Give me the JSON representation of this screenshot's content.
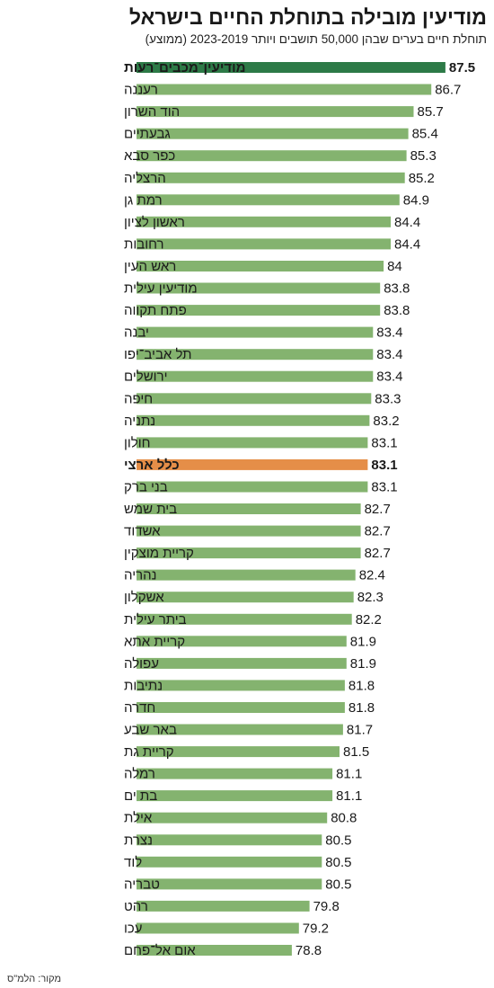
{
  "header": {
    "title": "מודיעין מובילה בתוחלת החיים בישראל",
    "subtitle": "תוחלת חיים בערים שבהן 50,000 תושבים ויותר 2023-2019 (ממוצע)"
  },
  "footer": {
    "source": "מקור: הלמ\"ס"
  },
  "colors": {
    "default_bar": "#84b36f",
    "highlight_city": "#2d7a47",
    "national_average": "#e58e48"
  },
  "chart_data": {
    "type": "bar",
    "orientation": "horizontal",
    "xlim": [
      70,
      89
    ],
    "grid": false,
    "legend": "none",
    "categories": [
      "מודיעין־מכבים־רעות",
      "רעננה",
      "הוד השרון",
      "גבעתיים",
      "כפר סבא",
      "הרצליה",
      "רמת גן",
      "ראשון לציון",
      "רחובות",
      "ראש העין",
      "מודיעין עילית",
      "פתח תקווה",
      "יבנה",
      "תל אביב־יפו",
      "ירושלים",
      "חיפה",
      "נתניה",
      "חולון",
      "כלל ארצי",
      "בני ברק",
      "בית שמש",
      "אשדוד",
      "קריית מוצקין",
      "נהריה",
      "אשקלון",
      "ביתר עילית",
      "קריית אתא",
      "עפולה",
      "נתיבות",
      "חדרה",
      "באר שבע",
      "קריית גת",
      "רמלה",
      "בת ים",
      "אילת",
      "נצרת",
      "לוד",
      "טבריה",
      "רהט",
      "עכו",
      "אום אל־פחם"
    ],
    "values": [
      87.5,
      86.7,
      85.7,
      85.4,
      85.3,
      85.2,
      84.9,
      84.4,
      84.4,
      84,
      83.8,
      83.8,
      83.4,
      83.4,
      83.4,
      83.3,
      83.2,
      83.1,
      83.1,
      83.1,
      82.7,
      82.7,
      82.7,
      82.4,
      82.3,
      82.2,
      81.9,
      81.9,
      81.8,
      81.8,
      81.7,
      81.5,
      81.1,
      81.1,
      80.8,
      80.5,
      80.5,
      80.5,
      79.8,
      79.2,
      78.8
    ],
    "value_labels": [
      "87.5",
      "86.7",
      "85.7",
      "85.4",
      "85.3",
      "85.2",
      "84.9",
      "84.4",
      "84.4",
      "84",
      "83.8",
      "83.8",
      "83.4",
      "83.4",
      "83.4",
      "83.3",
      "83.2",
      "83.1",
      "83.1",
      "83.1",
      "82.7",
      "82.7",
      "82.7",
      "82.4",
      "82.3",
      "82.2",
      "81.9",
      "81.9",
      "81.8",
      "81.8",
      "81.7",
      "81.5",
      "81.1",
      "81.1",
      "80.8",
      "80.5",
      "80.5",
      "80.5",
      "79.8",
      "79.2",
      "78.8"
    ],
    "highlighted": [
      {
        "index": 0,
        "style": "highlight_city",
        "bold": true
      },
      {
        "index": 18,
        "style": "national_average",
        "bold": true
      }
    ]
  }
}
